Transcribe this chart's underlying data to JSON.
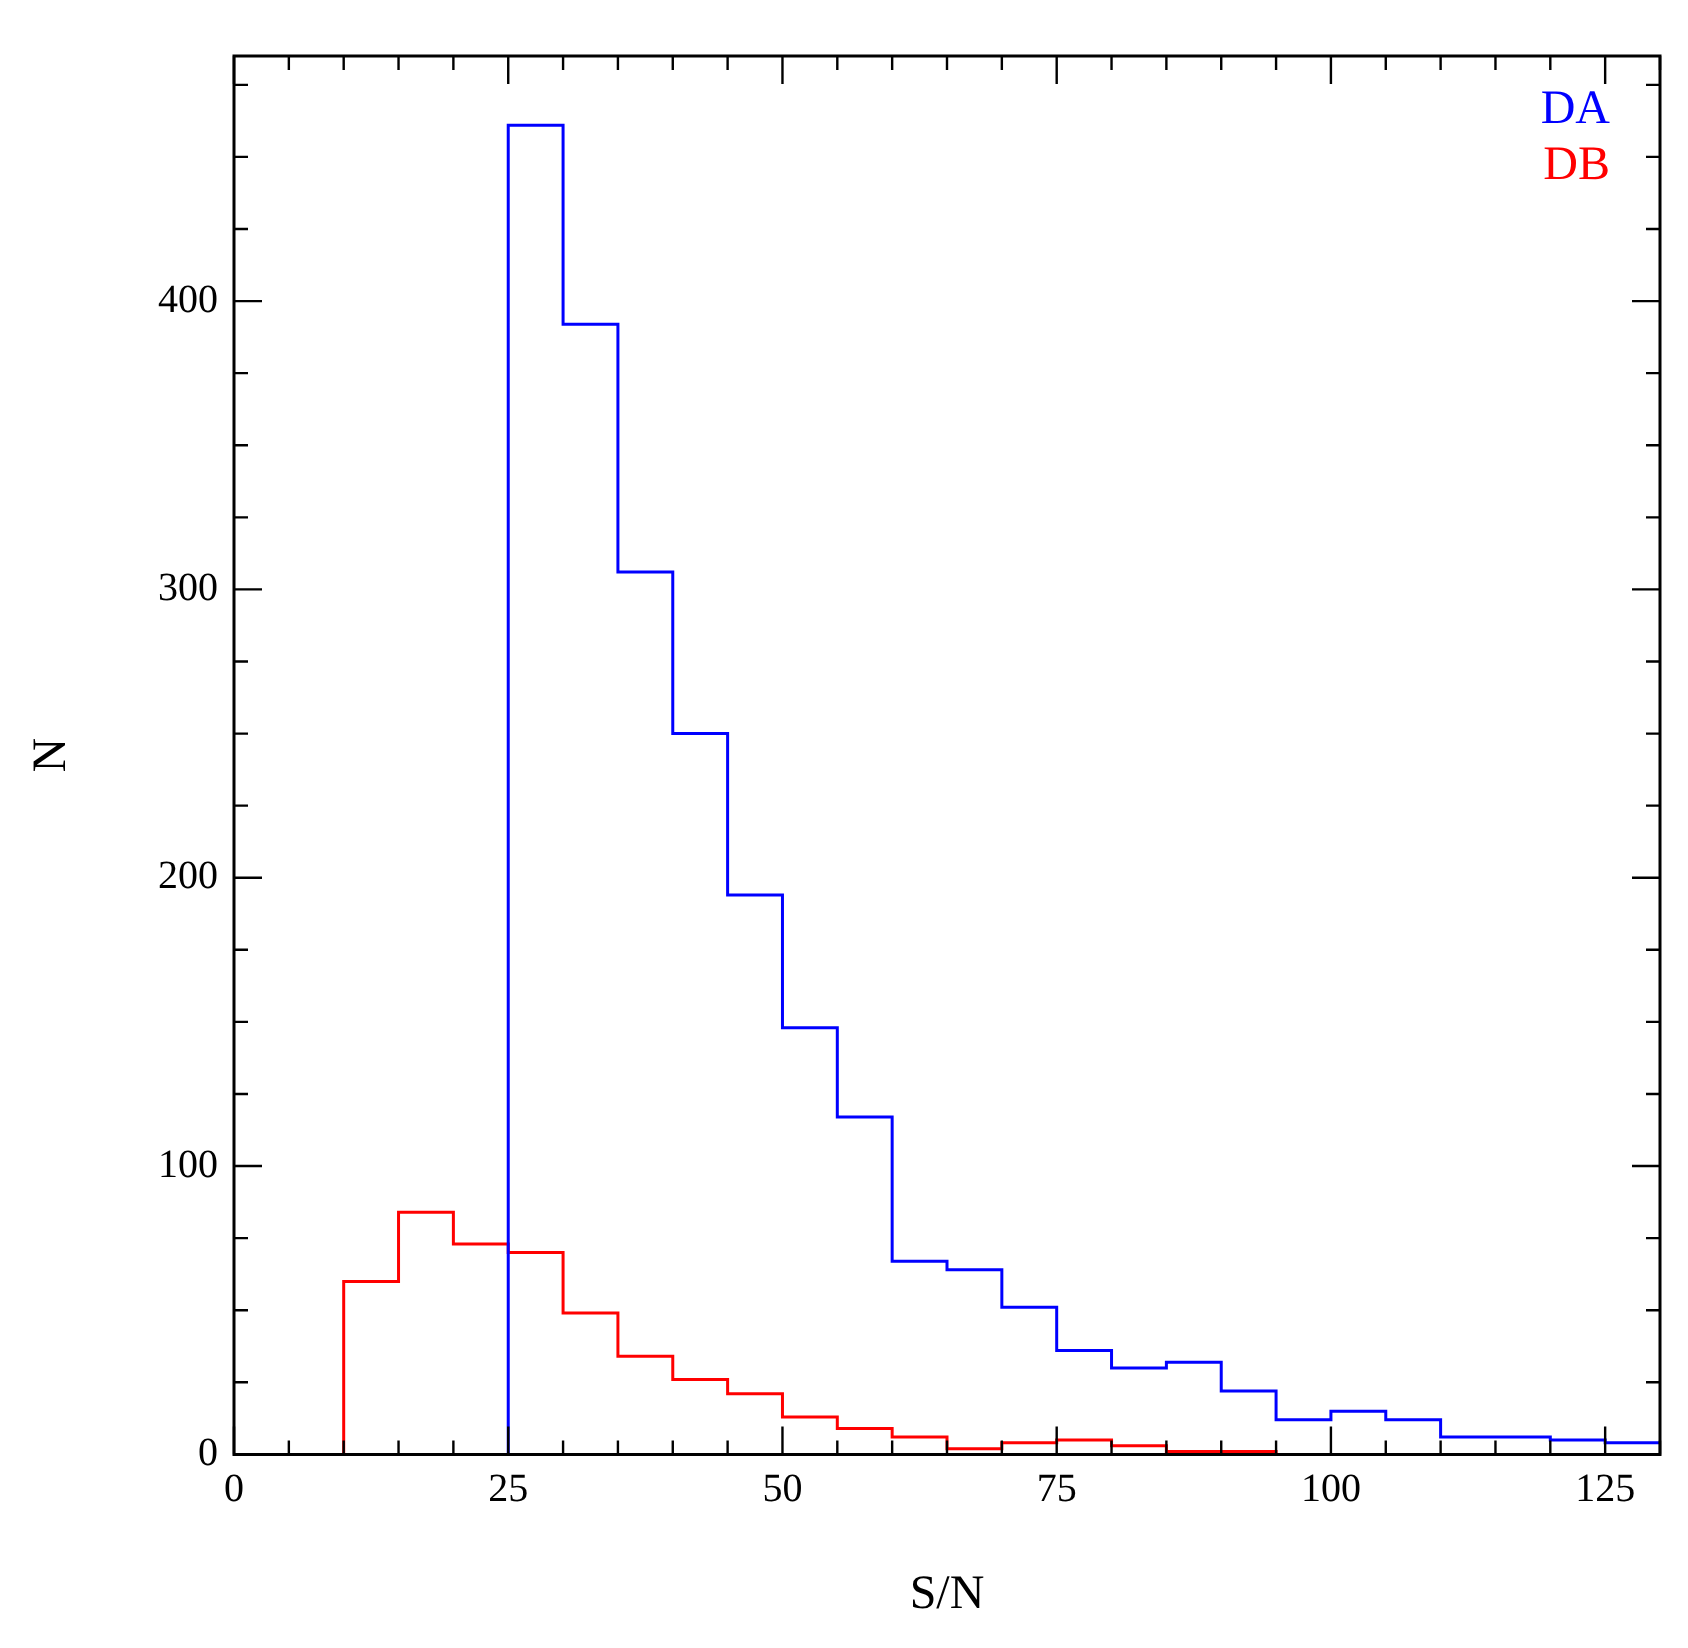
{
  "chart_data": {
    "type": "histogram",
    "xlabel": "S/N",
    "ylabel": "N",
    "bins": [
      0,
      5,
      10,
      15,
      20,
      25,
      30,
      35,
      40,
      45,
      50,
      55,
      60,
      65,
      70,
      75,
      80,
      85,
      90,
      95,
      100,
      105,
      110,
      115,
      120,
      125,
      130
    ],
    "series": [
      {
        "name": "DA",
        "color": "#0000ff",
        "values": [
          0,
          0,
          0,
          0,
          0,
          461,
          392,
          306,
          250,
          194,
          148,
          117,
          67,
          64,
          51,
          36,
          30,
          32,
          22,
          12,
          15,
          12,
          6,
          6,
          5,
          4
        ]
      },
      {
        "name": "DB",
        "color": "#ff0000",
        "values": [
          0,
          0,
          60,
          84,
          73,
          70,
          49,
          34,
          26,
          21,
          13,
          9,
          6,
          2,
          4,
          5,
          3,
          1,
          1,
          0,
          0,
          0,
          0,
          0,
          0,
          0
        ]
      }
    ],
    "xlim": [
      0,
      130
    ],
    "ylim": [
      0,
      485
    ],
    "xticks": [
      0,
      {
        "value": 5,
        "label": null
      },
      {
        "value": 10,
        "label": null
      },
      {
        "value": 15,
        "label": null
      },
      {
        "value": 20,
        "label": null
      },
      25,
      {
        "value": 30,
        "label": null
      },
      {
        "value": 35,
        "label": null
      },
      {
        "value": 40,
        "label": null
      },
      {
        "value": 45,
        "label": null
      },
      50,
      {
        "value": 55,
        "label": null
      },
      {
        "value": 60,
        "label": null
      },
      {
        "value": 65,
        "label": null
      },
      {
        "value": 70,
        "label": null
      },
      75,
      {
        "value": 80,
        "label": null
      },
      {
        "value": 85,
        "label": null
      },
      {
        "value": 90,
        "label": null
      },
      {
        "value": 95,
        "label": null
      },
      100,
      {
        "value": 105,
        "label": null
      },
      {
        "value": 110,
        "label": null
      },
      {
        "value": 115,
        "label": null
      },
      {
        "value": 120,
        "label": null
      },
      125,
      {
        "value": 130,
        "label": null
      }
    ],
    "yticks": [
      0,
      {
        "value": 25,
        "label": null
      },
      {
        "value": 50,
        "label": null
      },
      {
        "value": 75,
        "label": null
      },
      100,
      {
        "value": 125,
        "label": null
      },
      {
        "value": 150,
        "label": null
      },
      {
        "value": 175,
        "label": null
      },
      200,
      {
        "value": 225,
        "label": null
      },
      {
        "value": 250,
        "label": null
      },
      {
        "value": 275,
        "label": null
      },
      300,
      {
        "value": 325,
        "label": null
      },
      {
        "value": 350,
        "label": null
      },
      {
        "value": 375,
        "label": null
      },
      400,
      {
        "value": 425,
        "label": null
      },
      {
        "value": 450,
        "label": null
      },
      {
        "value": 475,
        "label": null
      }
    ],
    "legend": "top right"
  }
}
